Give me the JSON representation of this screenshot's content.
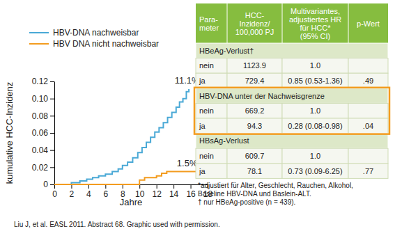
{
  "chart_data": {
    "type": "line",
    "x_label": "Jahre",
    "y_label": "kumulative HCC-Inzidenz",
    "xlim": [
      0,
      18
    ],
    "xticks": [
      0,
      2,
      4,
      6,
      8,
      10,
      12,
      14,
      16,
      18
    ],
    "ylim": [
      0,
      0.12
    ],
    "yticks": [
      0,
      0.02,
      0.04,
      0.06,
      {
        "value": 0.08,
        "label": "0.08"
      },
      {
        "value": 0.1,
        "label": "0.10"
      },
      0.12
    ],
    "legend": "upper left",
    "line_style": "solid",
    "series": [
      {
        "name": "HBV-DNA nachweisbar",
        "color": "#4aa9d6",
        "x": [
          0,
          2,
          3,
          3.8,
          4.5,
          5.2,
          6,
          6.8,
          7.5,
          8,
          8.6,
          9.2,
          9.8,
          10.3,
          10.8,
          11.3,
          11.8,
          12.3,
          12.8,
          13.3,
          13.8,
          14.3,
          14.7,
          15.1,
          15.5,
          15.8
        ],
        "values": [
          0,
          0.002,
          0.004,
          0.006,
          0.008,
          0.01,
          0.012,
          0.015,
          0.018,
          0.022,
          0.026,
          0.031,
          0.037,
          0.043,
          0.049,
          0.055,
          0.061,
          0.066,
          0.072,
          0.078,
          0.084,
          0.09,
          0.096,
          0.1,
          0.108,
          0.111
        ]
      },
      {
        "name": "HBV DNA nicht nachweisbar",
        "color": "#f39c1f",
        "x": [
          0,
          10,
          10.6,
          12,
          12.6,
          13.2,
          16.7
        ],
        "values": [
          0,
          0.005,
          0.008,
          0.01,
          0.013,
          0.015,
          0.015
        ]
      }
    ],
    "annotations": [
      {
        "text": "11.1%",
        "x": 15.6,
        "y": 0.111
      },
      {
        "text": "1.5%",
        "x": 15.6,
        "y": 0.015
      }
    ]
  },
  "table": {
    "header": [
      [
        "Para-",
        "meter"
      ],
      [
        "HCC-",
        "Inzidenz/",
        "100,000 PJ"
      ],
      [
        "Multivariantes,",
        "adjustiertes HR",
        "für HCC*",
        "(95% CI)"
      ],
      [
        "p-Wert"
      ]
    ],
    "sections": [
      {
        "title": "HBeAg-Verlust†",
        "highlighted": false,
        "rows": [
          [
            "nein",
            "1123.9",
            "1.0"
          ],
          [
            "ja",
            "729.4",
            "0.85 (0.53-1.36)",
            ".49"
          ]
        ]
      },
      {
        "title": "HBV-DNA unter der Nachweisgrenze",
        "highlighted": true,
        "rows": [
          [
            "nein",
            "669.2",
            "1.0"
          ],
          [
            "ja",
            "94.3",
            "0.28 (0.08-0.98)",
            ".04"
          ]
        ]
      },
      {
        "title": "HBsAg-Verlust",
        "highlighted": false,
        "rows": [
          [
            "nein",
            "609.7",
            "1.0"
          ],
          [
            "ja",
            "78.1",
            "0.73 (0.09-6.25)",
            ".77"
          ]
        ]
      }
    ]
  },
  "footnotes": [
    "*adjustiert für Alter, Geschlecht, Rauchen, Alkohol,",
    "Baseline HBV-DNA und Baslein-ALT.",
    "† nur HBeAg-positive (n = 439)."
  ],
  "source": "Liu J, et al. EASL 2011. Abstract 68. Graphic used with permission."
}
